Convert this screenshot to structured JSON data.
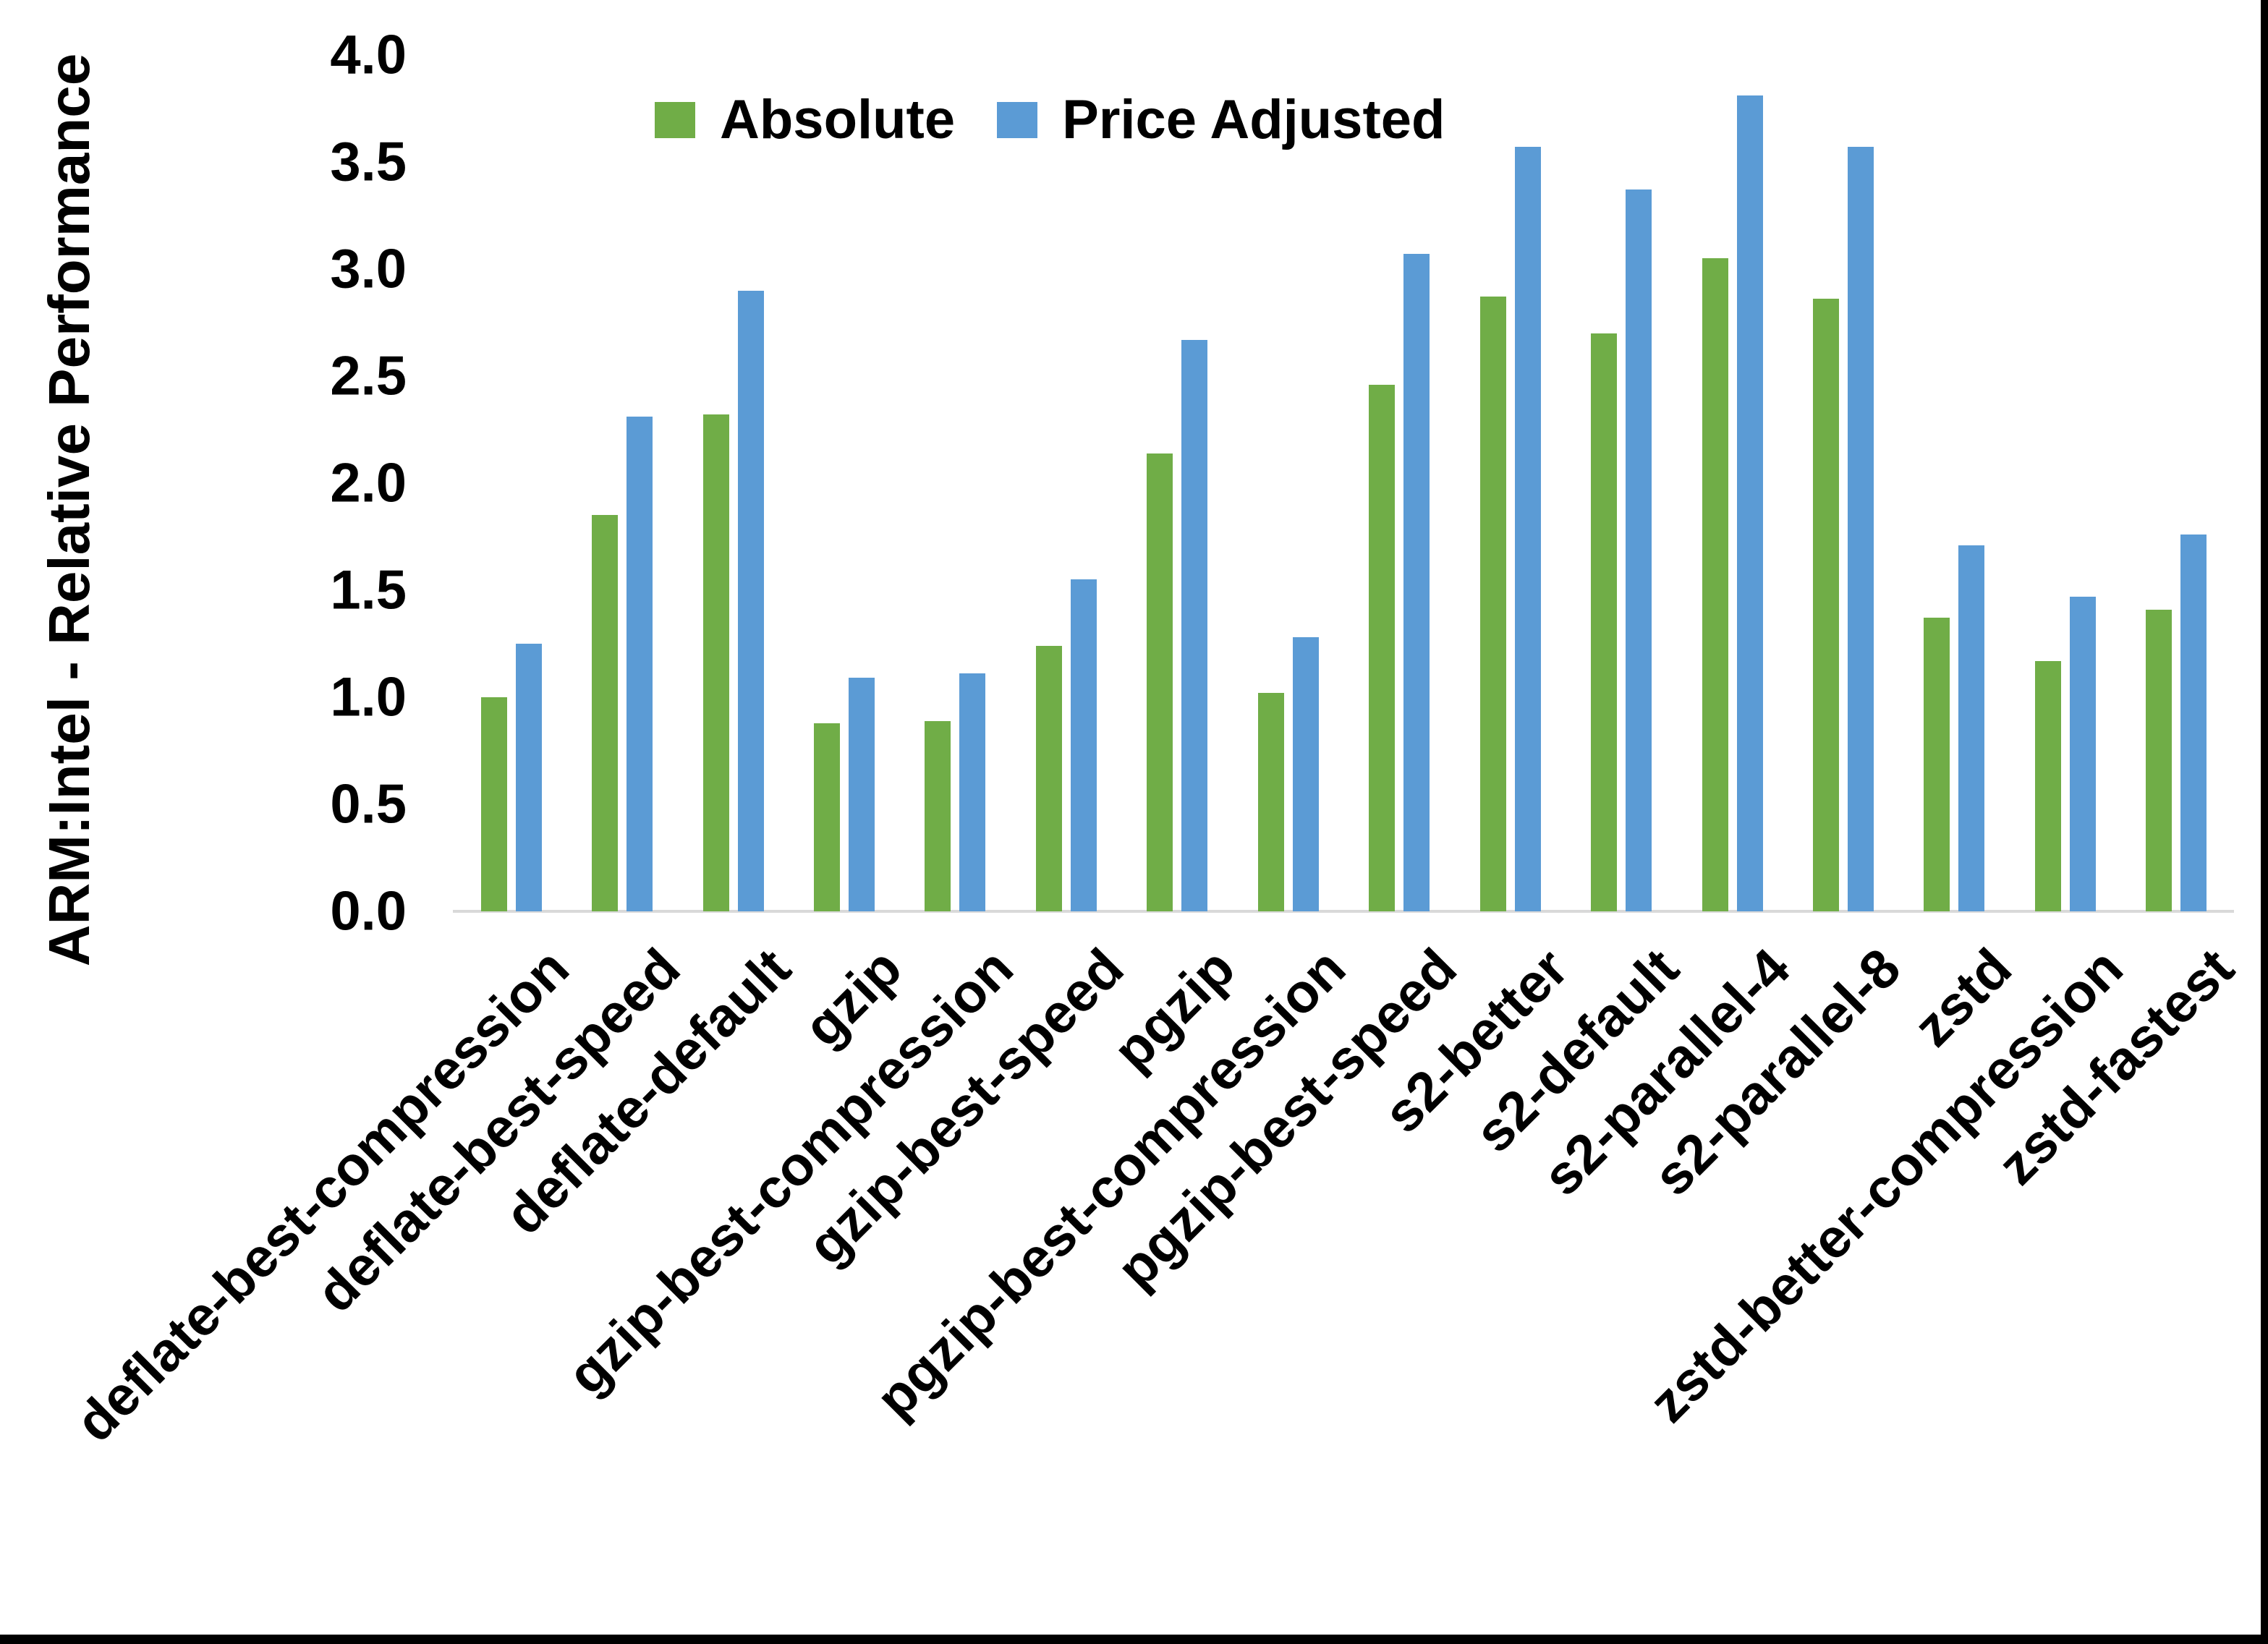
{
  "page": {
    "background": "#FFFFFF",
    "frame_border_color": "#000000"
  },
  "chart_data": {
    "type": "bar",
    "title": "",
    "xlabel": "",
    "ylabel": "ARM:Intel - Relative Performance",
    "legend_position": "top",
    "grid": false,
    "ylim": [
      0.0,
      4.0
    ],
    "ytick_step": 0.5,
    "ytick_labels": [
      "0.0",
      "0.5",
      "1.0",
      "1.5",
      "2.0",
      "2.5",
      "3.0",
      "3.5",
      "4.0"
    ],
    "axis_line_color": "#D9D9D9",
    "categories": [
      "deflate-best-compression",
      "deflate-best-speed",
      "deflate-default",
      "gzip",
      "gzip-best-compression",
      "gzip-best-speed",
      "pgzip",
      "pgzip-best-compression",
      "pgzip-best-speed",
      "s2-better",
      "s2-default",
      "s2-parallel-4",
      "s2-parallel-8",
      "zstd",
      "zstd-better-compression",
      "zstd-fastest"
    ],
    "series": [
      {
        "name": "Absolute",
        "color": "#70AD47",
        "values": [
          1.0,
          1.85,
          2.32,
          0.88,
          0.89,
          1.24,
          2.14,
          1.02,
          2.46,
          2.87,
          2.7,
          3.05,
          2.86,
          1.37,
          1.17,
          1.41
        ]
      },
      {
        "name": "Price Adjusted",
        "color": "#5B9BD5",
        "values": [
          1.25,
          2.31,
          2.9,
          1.09,
          1.11,
          1.55,
          2.67,
          1.28,
          3.07,
          3.57,
          3.37,
          3.81,
          3.57,
          1.71,
          1.47,
          1.76
        ]
      }
    ]
  }
}
